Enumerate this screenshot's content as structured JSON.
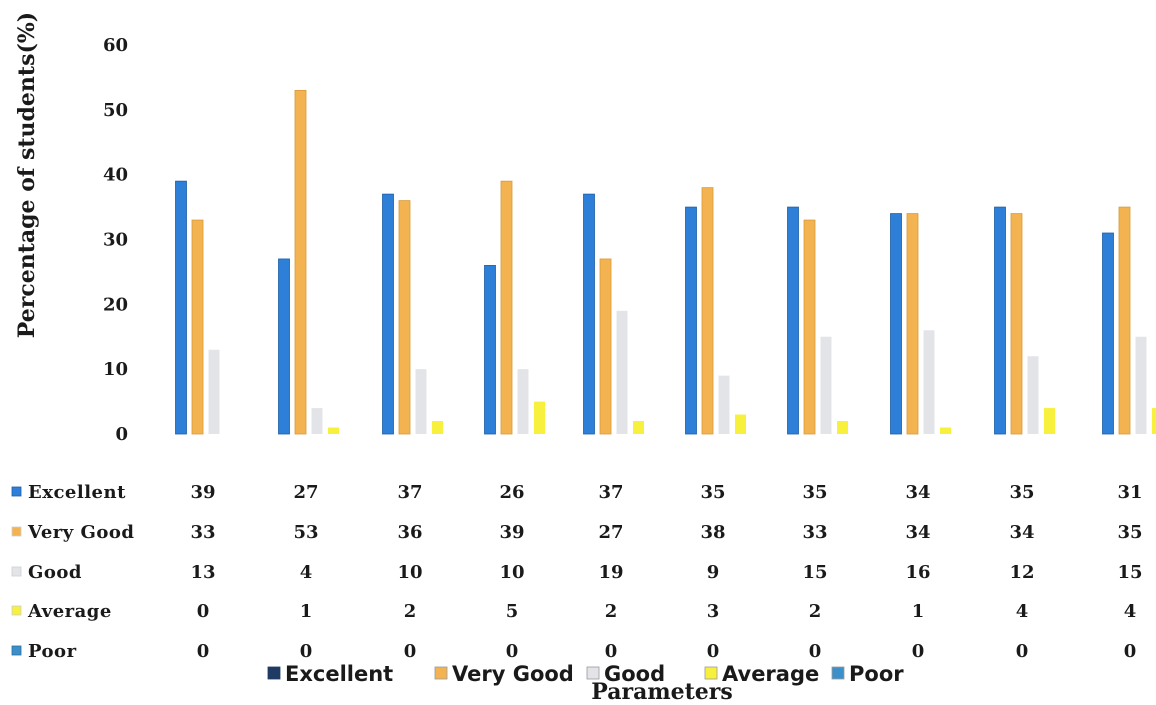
{
  "chart_data": {
    "type": "bar",
    "ylabel": "Percentage of students(%)",
    "xlabel": "Parameters",
    "ylim": [
      0,
      60
    ],
    "yticks": [
      0,
      10,
      20,
      30,
      40,
      50,
      60
    ],
    "categories": [
      "",
      "",
      "",
      "",
      "",
      "",
      "",
      "",
      "",
      ""
    ],
    "series": [
      {
        "name": "Excellent",
        "color": "#2E7FD8",
        "values": [
          39,
          27,
          37,
          26,
          37,
          35,
          35,
          34,
          35,
          31
        ]
      },
      {
        "name": "Very Good",
        "color": "#F2B350",
        "values": [
          33,
          53,
          36,
          39,
          27,
          38,
          33,
          34,
          34,
          35
        ]
      },
      {
        "name": "Good",
        "color": "#E3E4E8",
        "values": [
          13,
          4,
          10,
          10,
          19,
          9,
          15,
          16,
          12,
          15
        ]
      },
      {
        "name": "Average",
        "color": "#F7F03C",
        "values": [
          0,
          1,
          2,
          5,
          2,
          3,
          2,
          1,
          4,
          4
        ]
      },
      {
        "name": "Poor",
        "color": "#3D8FC9",
        "values": [
          0,
          0,
          0,
          0,
          0,
          0,
          0,
          0,
          0,
          0
        ]
      }
    ],
    "legend_position": "bottom",
    "grid": false,
    "data_table": true
  }
}
